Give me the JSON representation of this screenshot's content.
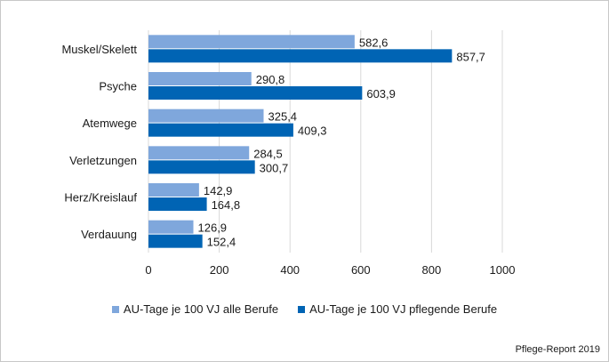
{
  "chart_data": {
    "type": "bar",
    "orientation": "horizontal",
    "categories": [
      "Muskel/Skelett",
      "Psyche",
      "Atemwege",
      "Verletzungen",
      "Herz/Kreislauf",
      "Verdauung"
    ],
    "series": [
      {
        "name": "AU-Tage je 100 VJ alle Berufe",
        "color": "#7fa7dc",
        "values": [
          582.6,
          290.8,
          325.4,
          284.5,
          142.9,
          126.9
        ]
      },
      {
        "name": "AU-Tage je 100 VJ pflegende Berufe",
        "color": "#0064b4",
        "values": [
          857.7,
          603.9,
          409.3,
          300.7,
          164.8,
          152.4
        ]
      }
    ],
    "xlim": [
      0,
      1000
    ],
    "xticks": [
      0,
      200,
      400,
      600,
      800,
      1000
    ],
    "grid": true,
    "legend": "bottom",
    "decimal_separator": ","
  },
  "source": "Pflege-Report 2019"
}
